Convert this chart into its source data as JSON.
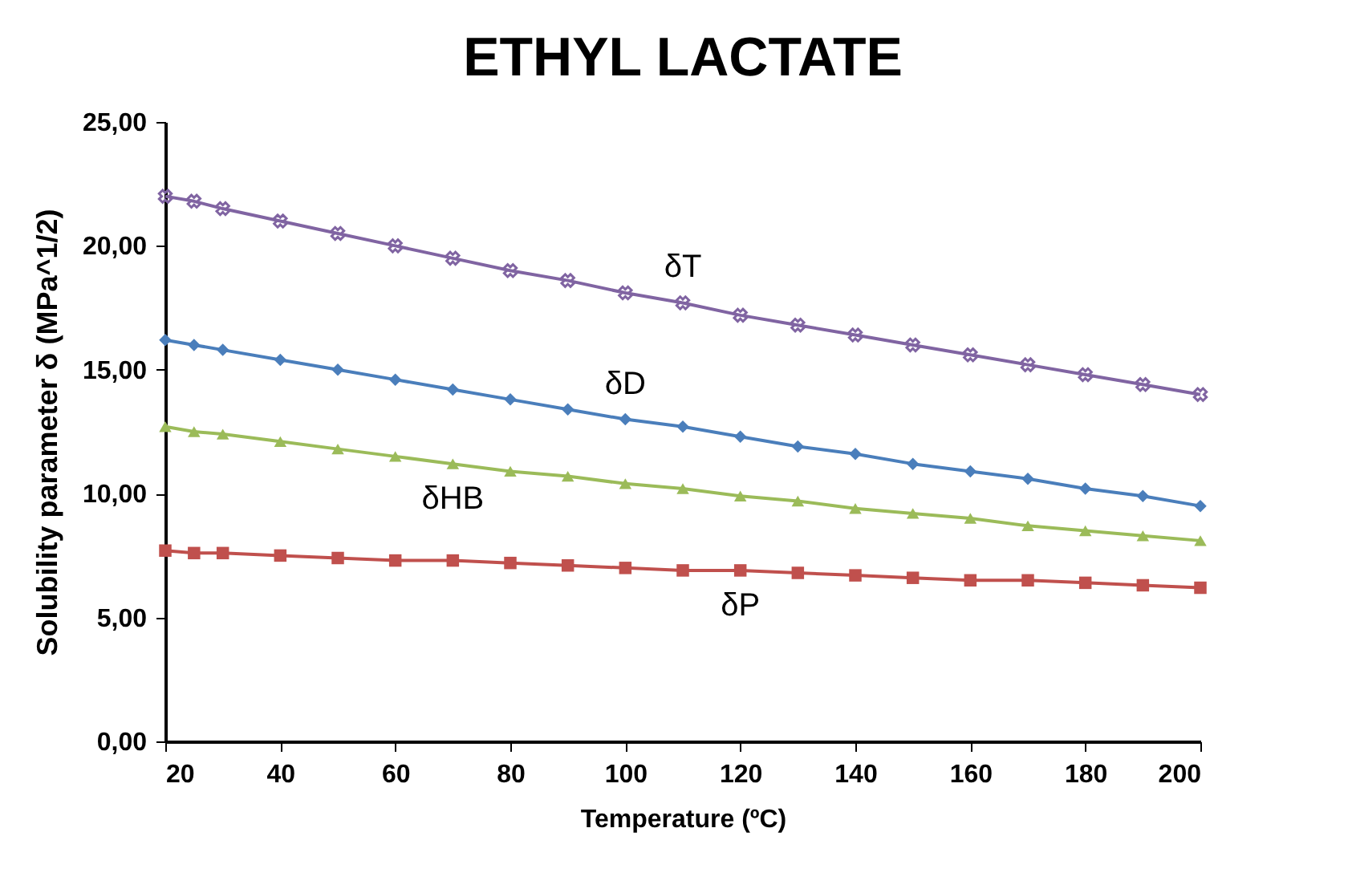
{
  "chart_data": {
    "type": "line",
    "title": "ETHYL LACTATE",
    "xlabel": "Temperature (ºC)",
    "ylabel": "Solubility parameter  δ (MPa^1/2)",
    "x": [
      20,
      25,
      30,
      40,
      50,
      60,
      70,
      80,
      90,
      100,
      110,
      120,
      130,
      140,
      150,
      160,
      170,
      180,
      190,
      200
    ],
    "xlim": [
      20,
      200
    ],
    "xticks": [
      20,
      40,
      60,
      80,
      100,
      120,
      140,
      160,
      180,
      200
    ],
    "ylim": [
      0,
      25
    ],
    "yticks": [
      {
        "value": 0,
        "label": "0,00"
      },
      {
        "value": 5,
        "label": "5,00"
      },
      {
        "value": 10,
        "label": "10,00"
      },
      {
        "value": 15,
        "label": "15,00"
      },
      {
        "value": 20,
        "label": "20,00"
      },
      {
        "value": 25,
        "label": "25,00"
      }
    ],
    "grid": false,
    "line_style": "solid",
    "series": [
      {
        "name": "δT",
        "color": "#8064a2",
        "marker": "cross",
        "values": [
          22.0,
          21.8,
          21.5,
          21.0,
          20.5,
          20.0,
          19.5,
          19.0,
          18.6,
          18.1,
          17.7,
          17.2,
          16.8,
          16.4,
          16.0,
          15.6,
          15.2,
          14.8,
          14.4,
          14.0
        ]
      },
      {
        "name": "δD",
        "color": "#4a7ebb",
        "marker": "diamond",
        "values": [
          16.2,
          16.0,
          15.8,
          15.4,
          15.0,
          14.6,
          14.2,
          13.8,
          13.4,
          13.0,
          12.7,
          12.3,
          11.9,
          11.6,
          11.2,
          10.9,
          10.6,
          10.2,
          9.9,
          9.5
        ]
      },
      {
        "name": "δHB",
        "color": "#9bbb59",
        "marker": "triangle",
        "values": [
          12.7,
          12.5,
          12.4,
          12.1,
          11.8,
          11.5,
          11.2,
          10.9,
          10.7,
          10.4,
          10.2,
          9.9,
          9.7,
          9.4,
          9.2,
          9.0,
          8.7,
          8.5,
          8.3,
          8.1
        ]
      },
      {
        "name": "δP",
        "color": "#c0504d",
        "marker": "square",
        "values": [
          7.7,
          7.6,
          7.6,
          7.5,
          7.4,
          7.3,
          7.3,
          7.2,
          7.1,
          7.0,
          6.9,
          6.9,
          6.8,
          6.7,
          6.6,
          6.5,
          6.5,
          6.4,
          6.3,
          6.2
        ]
      }
    ]
  }
}
